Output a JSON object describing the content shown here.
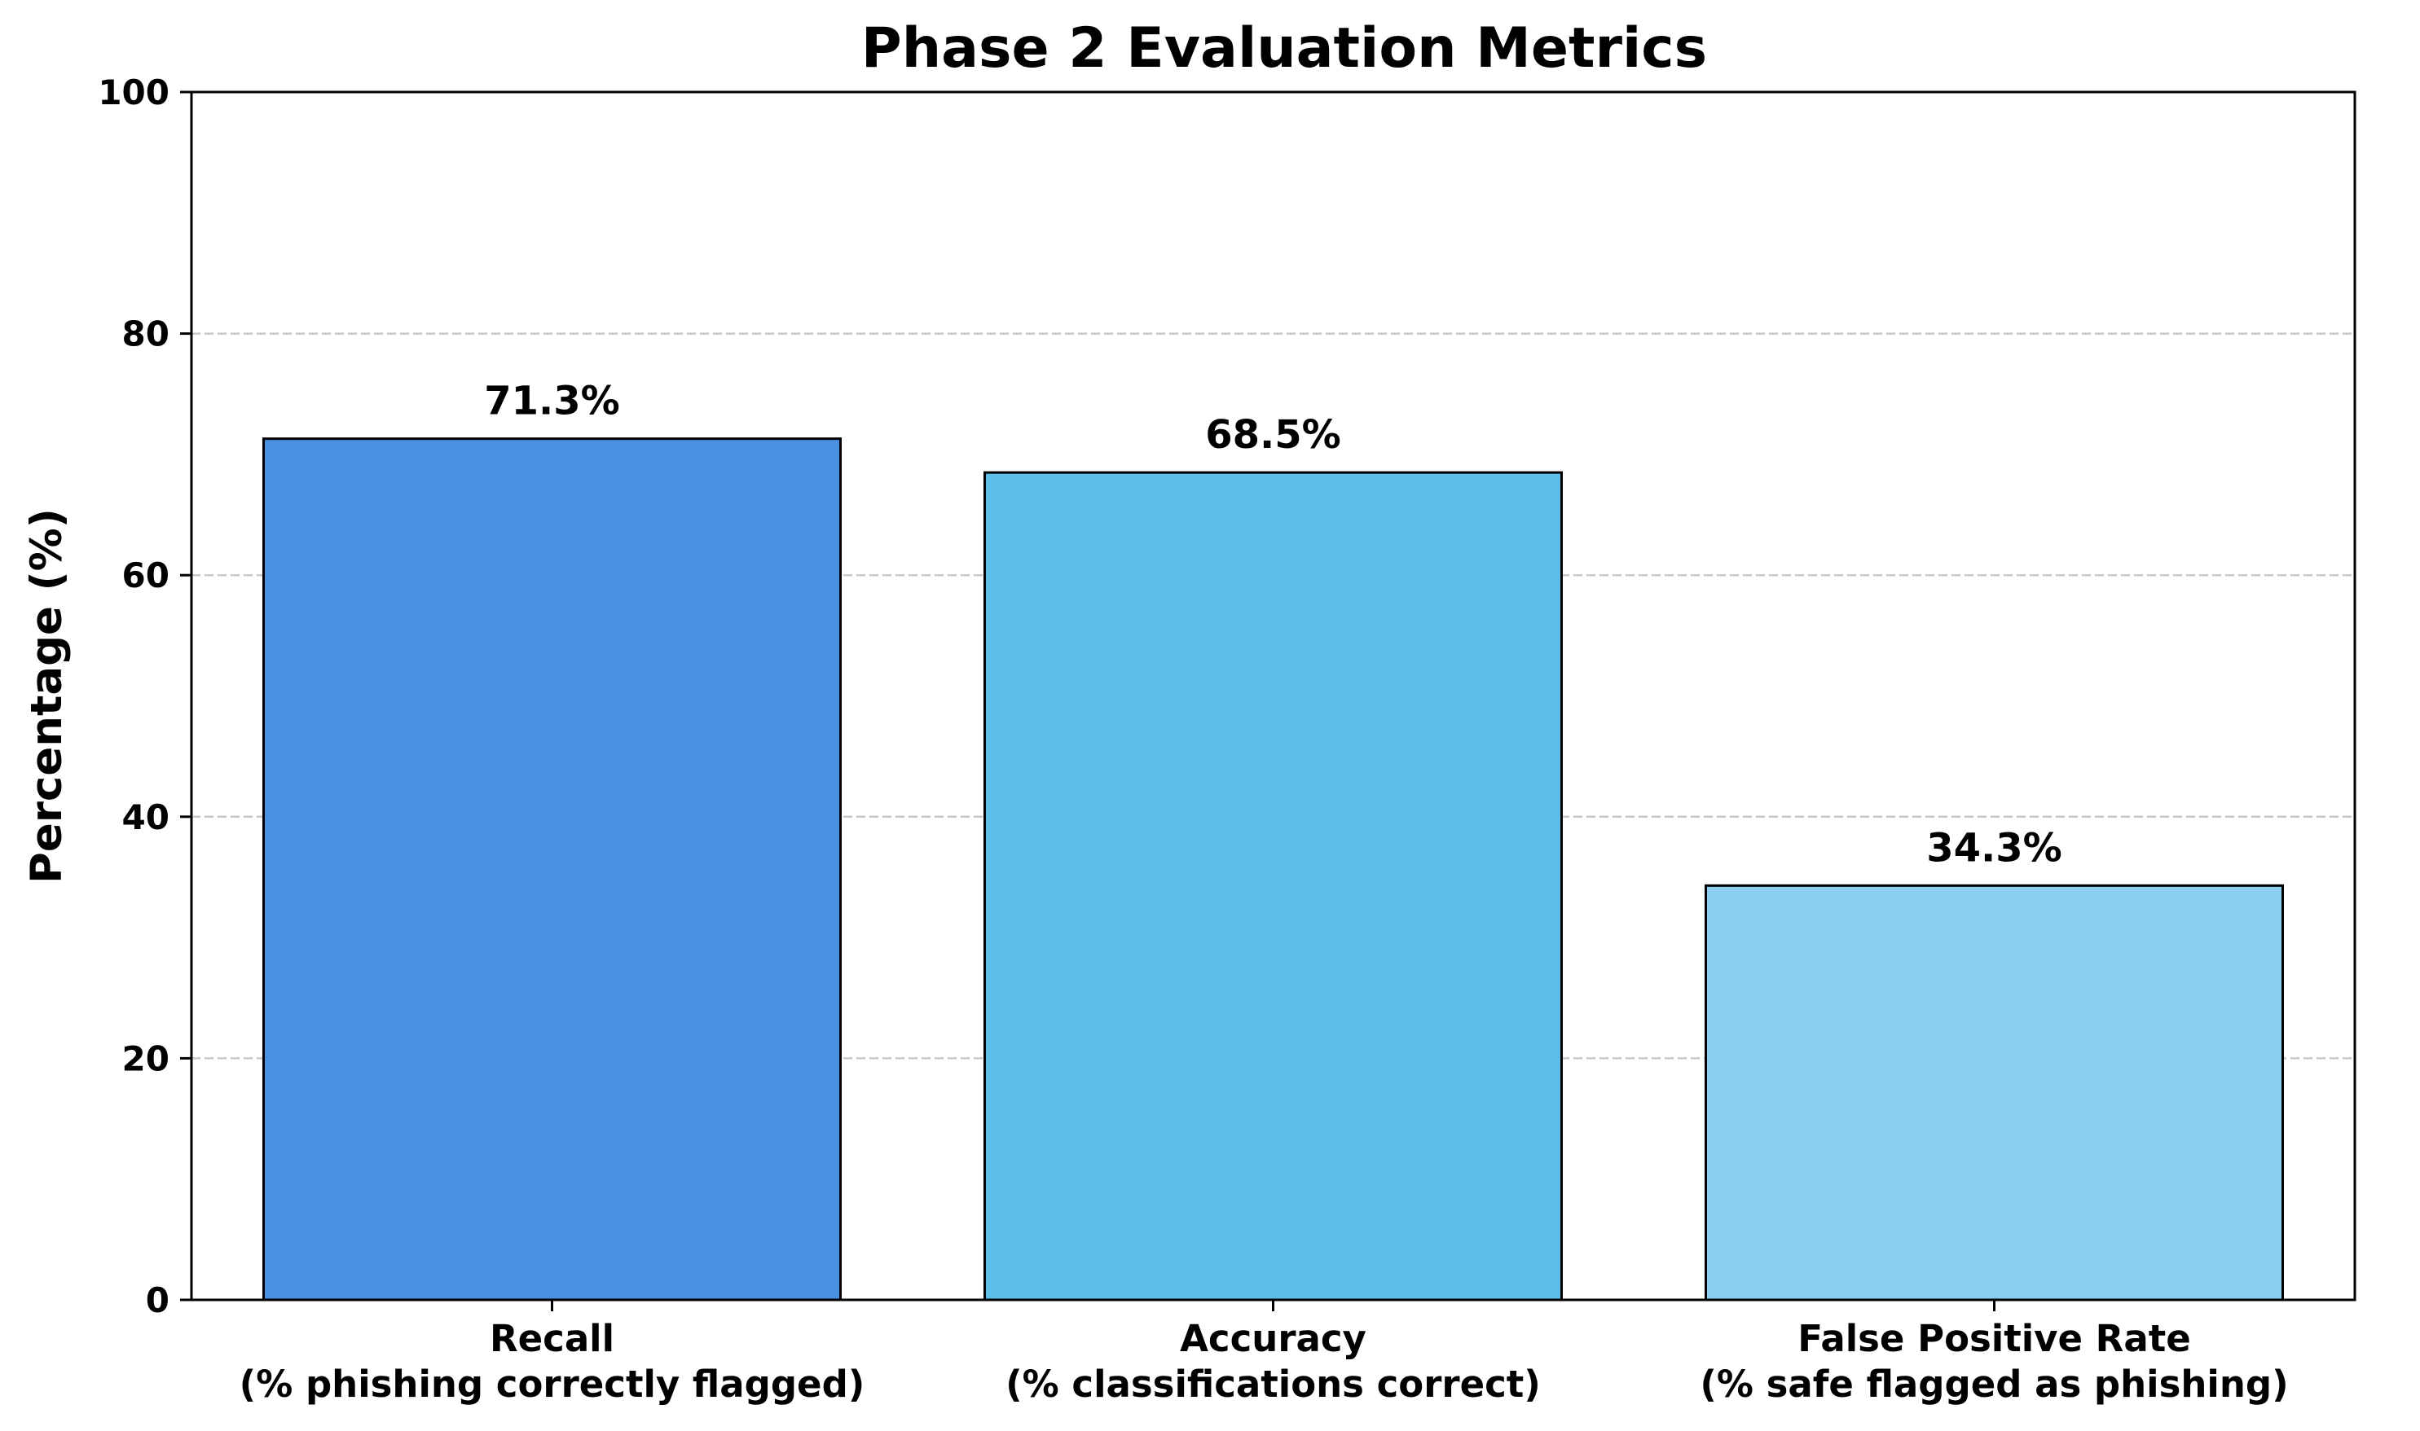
{
  "chart_data": {
    "type": "bar",
    "title": "Phase 2 Evaluation Metrics",
    "xlabel": "",
    "ylabel": "Percentage (%)",
    "ylim": [
      0,
      100
    ],
    "yticks": [
      0,
      20,
      40,
      60,
      80,
      100
    ],
    "grid": "y-axis dashed",
    "categories": [
      [
        "Recall",
        "(% phishing correctly flagged)"
      ],
      [
        "Accuracy",
        "(% classifications correct)"
      ],
      [
        "False Positive Rate",
        "(% safe flagged as phishing)"
      ]
    ],
    "values": [
      71.3,
      68.5,
      34.3
    ],
    "data_labels": [
      "71.3%",
      "68.5%",
      "34.3%"
    ],
    "colors": [
      "#4a90e2",
      "#5bbfea",
      "#8acfef"
    ],
    "grid_color": "#c8c8c8"
  }
}
